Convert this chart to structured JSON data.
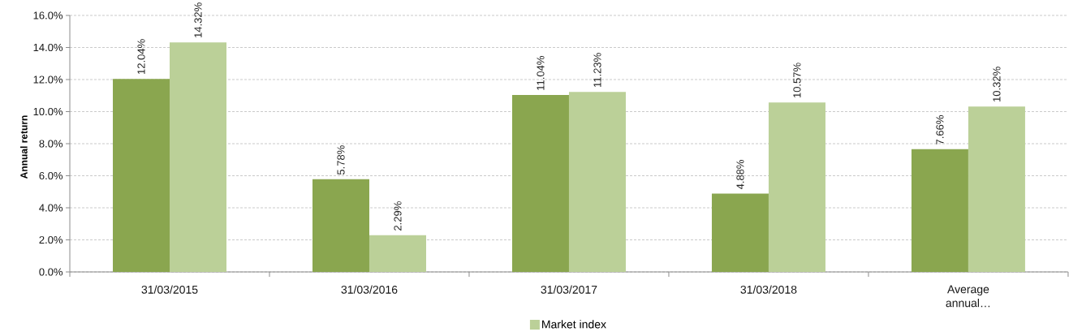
{
  "chart_data": {
    "type": "bar",
    "ylabel": "Annual return",
    "categories": [
      "31/03/2015",
      "31/03/2016",
      "31/03/2017",
      "31/03/2018",
      "Average annual…"
    ],
    "series": [
      {
        "color": "#8aa64f",
        "values": [
          12.04,
          5.78,
          11.04,
          4.88,
          7.66
        ],
        "value_labels": [
          "12.04%",
          "5.78%",
          "11.04%",
          "4.88%",
          "7.66%"
        ]
      },
      {
        "name": "Market index",
        "color": "#bbd098",
        "values": [
          14.32,
          2.29,
          11.23,
          10.57,
          10.32
        ],
        "value_labels": [
          "14.32%",
          "2.29%",
          "11.23%",
          "10.57%",
          "10.32%"
        ]
      }
    ],
    "ylim": [
      0,
      16
    ],
    "yticks": [
      {
        "value": 0,
        "label": "0.0%"
      },
      {
        "value": 2,
        "label": "2.0%"
      },
      {
        "value": 4,
        "label": "4.0%"
      },
      {
        "value": 6,
        "label": "6.0%"
      },
      {
        "value": 8,
        "label": "8.0%"
      },
      {
        "value": 10,
        "label": "10.0%"
      },
      {
        "value": 12,
        "label": "12.0%"
      },
      {
        "value": 14,
        "label": "14.0%"
      },
      {
        "value": 16,
        "label": "16.0%"
      }
    ],
    "grid": "y",
    "legend": "bottom"
  }
}
